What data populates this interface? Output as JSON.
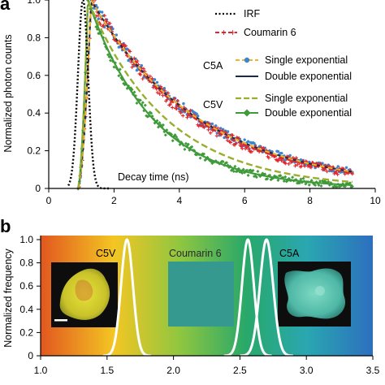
{
  "chart_data": [
    {
      "panel_label": "a",
      "type": "scatter",
      "xlabel": "Decay time (ns)",
      "ylabel": "Normalized photon counts",
      "xlim": [
        0,
        10
      ],
      "ylim": [
        0,
        1.0
      ],
      "xticks": [
        "0",
        "2",
        "4",
        "6",
        "8",
        "10"
      ],
      "yticks": [
        "0",
        "0.2",
        "0.4",
        "0.6",
        "0.8",
        "1.0"
      ],
      "legend": [
        {
          "label": "IRF",
          "style": "dotted",
          "color": "#000000"
        },
        {
          "label": "Coumarin 6",
          "style": "dashed-plus",
          "color": "#e0262b"
        },
        {
          "group": "C5A",
          "label": "Single exponential",
          "style": "dashed-dot",
          "color": "#f0b429",
          "marker_color": "#3a86d0"
        },
        {
          "group": "C5A",
          "label": "Double exponential",
          "style": "solid",
          "color": "#1b2a4a"
        },
        {
          "group": "C5V",
          "label": "Single exponential",
          "style": "dashed",
          "color": "#9aae2e"
        },
        {
          "group": "C5V",
          "label": "Double exponential",
          "style": "solid-diamond",
          "color": "#3f9a3a"
        }
      ],
      "series": [
        {
          "name": "IRF",
          "peak_x": 1.05,
          "width": 0.22,
          "peak_y": 1.0
        },
        {
          "name": "Coumarin 6",
          "onset_x": 0.9,
          "peak_x": 1.3,
          "tau": 3.2
        },
        {
          "name": "C5A",
          "onset_x": 0.9,
          "peak_x": 1.3,
          "tau": 3.3
        },
        {
          "name": "C5V",
          "onset_x": 0.9,
          "peak_x": 1.2,
          "tau": 2.0
        }
      ],
      "x_end": 9.3
    },
    {
      "panel_label": "b",
      "type": "line",
      "ylabel": "Normalized frequency",
      "xlim": [
        1.0,
        3.5
      ],
      "ylim": [
        0,
        1.0
      ],
      "xticks": [
        "1.0",
        "1.5",
        "2.0",
        "2.5",
        "3.0",
        "3.5"
      ],
      "yticks": [
        "0",
        "0.2",
        "0.4",
        "0.6",
        "0.8",
        "1.0"
      ],
      "annotations": [
        "C5V",
        "Coumarin 6",
        "C5A"
      ],
      "series": [
        {
          "name": "C5V",
          "center": 1.65,
          "sigma": 0.045
        },
        {
          "name": "Coumarin 6",
          "center": 2.56,
          "sigma": 0.045
        },
        {
          "name": "C5A",
          "center": 2.7,
          "sigma": 0.05
        }
      ],
      "gradient_colors": [
        "#e2571f",
        "#f3c623",
        "#8fc640",
        "#28a86a",
        "#2aa7b0",
        "#2c6fbf"
      ]
    }
  ]
}
